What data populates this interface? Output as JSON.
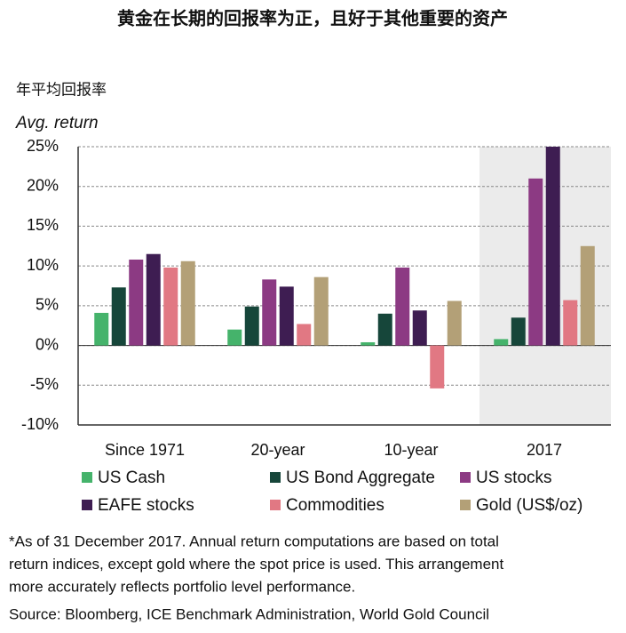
{
  "chart_data": {
    "type": "bar",
    "title": "黄金在长期的回报率为正，且好于其他重要的资产",
    "y_label_cn": "年平均回报率",
    "y_label": "Avg.  return",
    "categories": [
      "Since 1971",
      "20-year",
      "10-year",
      "2017"
    ],
    "series": [
      {
        "name": "US Cash",
        "color": "#45b36b",
        "values": [
          4.1,
          2.0,
          0.4,
          0.8
        ]
      },
      {
        "name": "US Bond Aggregate",
        "color": "#16463a",
        "values": [
          7.3,
          4.9,
          4.0,
          3.5
        ]
      },
      {
        "name": "US stocks",
        "color": "#8c3a83",
        "values": [
          10.8,
          8.3,
          9.8,
          21.0
        ]
      },
      {
        "name": "EAFE stocks",
        "color": "#3e1d52",
        "values": [
          11.5,
          7.4,
          4.4,
          25.0
        ]
      },
      {
        "name": "Commodities",
        "color": "#e17883",
        "values": [
          9.8,
          2.7,
          -5.4,
          5.7
        ]
      },
      {
        "name": "Gold (US$/oz)",
        "color": "#b3a077",
        "values": [
          10.6,
          8.6,
          5.6,
          12.5
        ]
      }
    ],
    "ylim": [
      -10,
      25
    ],
    "yticks": [
      {
        "value": -10,
        "label": "-10%"
      },
      {
        "value": -5,
        "label": "-5%"
      },
      {
        "value": 0,
        "label": "0%"
      },
      {
        "value": 5,
        "label": "5%"
      },
      {
        "value": 10,
        "label": "10%"
      },
      {
        "value": 15,
        "label": "15%"
      },
      {
        "value": 20,
        "label": "20%"
      },
      {
        "value": 25,
        "label": "25%"
      }
    ],
    "grid": true,
    "legend": "bottom",
    "notes": [
      "*As of 31 December 2017. Annual return computations are based on total",
      "return indices, except gold where the spot price is used. This arrangement",
      "more accurately reflects portfolio level performance.",
      "Source: Bloomberg, ICE Benchmark Administration, World Gold Council"
    ]
  }
}
